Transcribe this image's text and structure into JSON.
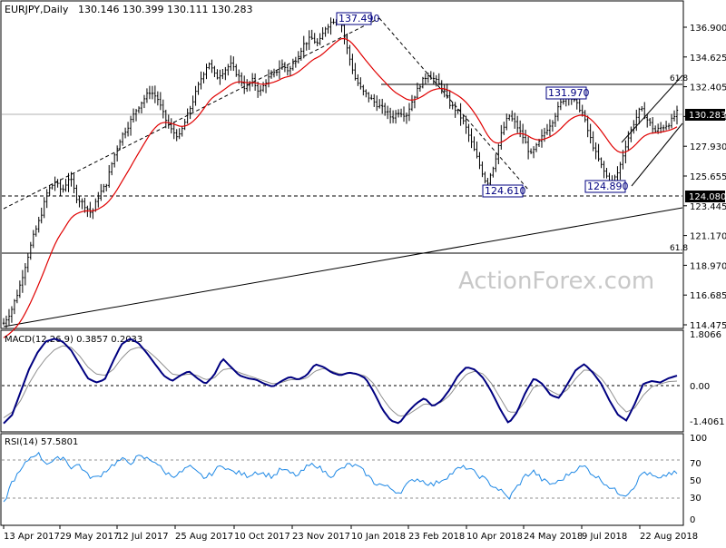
{
  "header": {
    "symbol": "EURJPY,Daily",
    "ohlc": "130.146 130.399 130.111 130.283"
  },
  "watermark": "ActionForex.com",
  "colors": {
    "price": "#000000",
    "ema": "#e00000",
    "macd": "#000080",
    "signal": "#808080",
    "rsi": "#1e88e5",
    "label_border": "#000080"
  },
  "chart_data": [
    {
      "type": "ohlc",
      "name": "price",
      "ylim": [
        114.475,
        138.5
      ],
      "y_ticks": [
        "136.900",
        "134.625",
        "132.405",
        "130.130",
        "127.930",
        "125.655",
        "123.445",
        "121.170",
        "118.970",
        "116.685",
        "114.475"
      ],
      "x_ticks": [
        "13 Apr 2017",
        "29 May 2017",
        "12 Jul 2017",
        "25 Aug 2017",
        "10 Oct 2017",
        "23 Nov 2017",
        "10 Jan 2018",
        "23 Feb 2018",
        "10 Apr 2018",
        "24 May 2018",
        "9 Jul 2018",
        "22 Aug 2018"
      ],
      "closes_approx": [
        114.6,
        115.5,
        117.0,
        119.0,
        121.0,
        122.5,
        124.5,
        125.2,
        124.5,
        125.6,
        124.0,
        123.5,
        122.8,
        124.2,
        125.0,
        127.0,
        128.5,
        129.4,
        130.5,
        131.3,
        132.0,
        131.5,
        130.0,
        129.0,
        128.6,
        130.0,
        131.5,
        133.0,
        134.2,
        133.0,
        133.5,
        134.0,
        133.2,
        132.2,
        132.8,
        131.9,
        132.9,
        133.3,
        134.0,
        133.5,
        134.5,
        135.5,
        136.0,
        135.5,
        136.8,
        137.3,
        137.4,
        135.0,
        133.0,
        132.0,
        131.5,
        131.0,
        130.6,
        130.0,
        130.5,
        130.2,
        131.5,
        132.6,
        133.3,
        132.8,
        132.2,
        131.0,
        130.5,
        129.5,
        128.0,
        126.5,
        125.0,
        126.5,
        128.8,
        130.2,
        129.5,
        128.5,
        127.2,
        128.0,
        129.0,
        129.8,
        131.0,
        131.8,
        131.2,
        130.5,
        128.7,
        127.2,
        126.0,
        125.0,
        126.0,
        128.0,
        129.5,
        130.7,
        129.8,
        129.0,
        129.3,
        129.6,
        130.4
      ],
      "last": "130.283",
      "price_labels": [
        "137.490",
        "124.610",
        "131.970",
        "124.890"
      ],
      "line_labels": [
        "124.080",
        "130.283"
      ],
      "fib_labels": [
        "61.8",
        "61.8"
      ]
    },
    {
      "type": "line",
      "name": "MACD(12,26,9) 0.3857 0.2033",
      "ylim": [
        -1.4061,
        1.8066
      ],
      "y_ticks": [
        "1.8066",
        "0.00",
        "-1.4061"
      ],
      "macd_approx": [
        -1.3,
        -1.0,
        -0.2,
        0.6,
        1.2,
        1.6,
        1.7,
        1.6,
        1.3,
        0.8,
        0.3,
        0.15,
        0.25,
        0.9,
        1.5,
        1.7,
        1.55,
        1.2,
        0.8,
        0.4,
        0.2,
        0.4,
        0.55,
        0.3,
        0.1,
        0.4,
        1.0,
        0.7,
        0.4,
        0.3,
        0.25,
        0.1,
        0.0,
        0.2,
        0.35,
        0.25,
        0.4,
        0.8,
        0.7,
        0.5,
        0.4,
        0.5,
        0.45,
        0.3,
        -0.2,
        -0.8,
        -1.2,
        -1.3,
        -0.9,
        -0.6,
        -0.4,
        -0.7,
        -0.5,
        -0.1,
        0.4,
        0.7,
        0.6,
        0.3,
        -0.2,
        -0.8,
        -1.3,
        -0.9,
        -0.2,
        0.3,
        0.1,
        -0.3,
        -0.4,
        0.1,
        0.6,
        0.8,
        0.5,
        0.1,
        -0.5,
        -1.0,
        -1.2,
        -0.6,
        0.1,
        0.2,
        0.15,
        0.3,
        0.39
      ],
      "signal_approx": [
        -1.1,
        -0.9,
        -0.5,
        0.1,
        0.6,
        1.0,
        1.3,
        1.45,
        1.4,
        1.1,
        0.7,
        0.45,
        0.4,
        0.6,
        1.0,
        1.3,
        1.4,
        1.3,
        1.05,
        0.75,
        0.45,
        0.4,
        0.45,
        0.4,
        0.25,
        0.3,
        0.6,
        0.65,
        0.5,
        0.4,
        0.3,
        0.2,
        0.1,
        0.15,
        0.25,
        0.25,
        0.3,
        0.55,
        0.65,
        0.55,
        0.45,
        0.48,
        0.45,
        0.38,
        0.1,
        -0.4,
        -0.8,
        -1.05,
        -1.0,
        -0.8,
        -0.6,
        -0.65,
        -0.55,
        -0.3,
        0.1,
        0.45,
        0.55,
        0.45,
        0.1,
        -0.4,
        -0.9,
        -0.9,
        -0.5,
        0.0,
        0.05,
        -0.15,
        -0.3,
        -0.1,
        0.3,
        0.6,
        0.55,
        0.3,
        -0.1,
        -0.6,
        -0.9,
        -0.75,
        -0.3,
        0.0,
        0.1,
        0.18,
        0.2
      ]
    },
    {
      "type": "line",
      "name": "RSI(14) 57.5801",
      "ylim": [
        0,
        100
      ],
      "y_ticks": [
        "100",
        "70",
        "50",
        "30",
        "0"
      ],
      "levels": [
        70,
        30
      ],
      "values_approx": [
        22,
        48,
        60,
        75,
        82,
        70,
        72,
        78,
        65,
        68,
        55,
        52,
        60,
        68,
        74,
        70,
        77,
        75,
        72,
        60,
        55,
        58,
        66,
        58,
        52,
        60,
        68,
        60,
        58,
        55,
        60,
        57,
        54,
        63,
        58,
        55,
        65,
        69,
        60,
        55,
        62,
        68,
        66,
        58,
        47,
        44,
        40,
        35,
        45,
        52,
        48,
        44,
        50,
        56,
        63,
        65,
        58,
        52,
        44,
        38,
        28,
        42,
        55,
        60,
        50,
        45,
        48,
        56,
        63,
        66,
        57,
        50,
        42,
        35,
        33,
        44,
        60,
        55,
        50,
        58,
        57.6
      ]
    }
  ]
}
